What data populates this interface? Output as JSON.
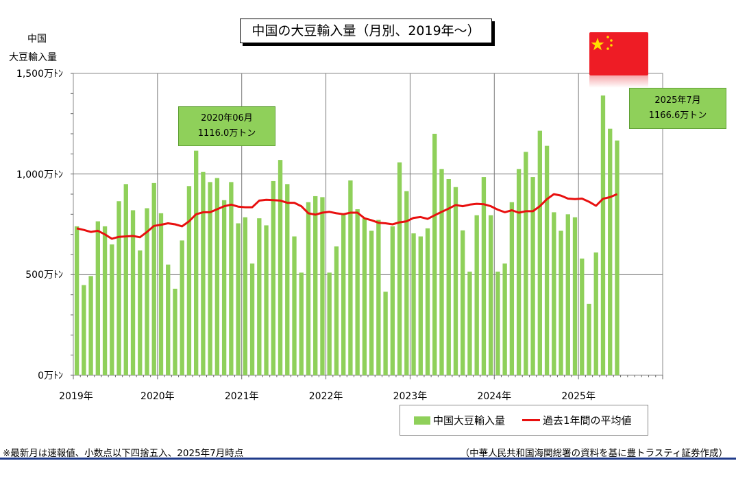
{
  "chart_data": {
    "type": "bar",
    "title": "中国の大豆輸入量（月別、2019年〜）",
    "ylabel_lines": [
      "中国",
      "大豆輸入量"
    ],
    "y_ticks": [
      {
        "value": 1500,
        "label": "1,500万ﾄﾝ"
      },
      {
        "value": 1000,
        "label": "1,000万ﾄﾝ"
      },
      {
        "value": 500,
        "label": "500万ﾄﾝ"
      },
      {
        "value": 0,
        "label": "0万ﾄﾝ"
      }
    ],
    "ylim": [
      0,
      1500
    ],
    "x_ticks": [
      "2019年",
      "2020年",
      "2021年",
      "2022年",
      "2023年",
      "2024年",
      "2025年"
    ],
    "months_span": 84,
    "grid": true,
    "series": [
      {
        "name": "中国大豆輸入量",
        "kind": "bar",
        "color": "#8fd05a",
        "values": [
          740,
          448,
          493,
          765,
          740,
          650,
          865,
          950,
          820,
          620,
          830,
          955,
          805,
          550,
          430,
          670,
          940,
          1116,
          1010,
          960,
          980,
          870,
          960,
          755,
          785,
          555,
          780,
          745,
          965,
          1070,
          950,
          690,
          510,
          860,
          890,
          885,
          510,
          640,
          805,
          968,
          825,
          780,
          718,
          772,
          415,
          740,
          1058,
          915,
          705,
          690,
          730,
          1200,
          1025,
          975,
          935,
          720,
          515,
          795,
          985,
          795,
          515,
          555,
          860,
          1025,
          1110,
          985,
          1215,
          1140,
          810,
          718,
          800,
          785,
          580,
          355,
          610,
          1390,
          1225,
          1166.6
        ]
      },
      {
        "name": "過去1年間の平均値",
        "kind": "line",
        "color": "#e8100f",
        "values": [
          730,
          722,
          712,
          718,
          700,
          678,
          688,
          690,
          692,
          686,
          712,
          742,
          748,
          755,
          750,
          740,
          765,
          800,
          810,
          810,
          825,
          840,
          848,
          838,
          835,
          835,
          868,
          872,
          870,
          868,
          857,
          857,
          840,
          805,
          798,
          808,
          812,
          805,
          800,
          808,
          808,
          780,
          770,
          758,
          755,
          750,
          760,
          765,
          782,
          786,
          777,
          795,
          812,
          828,
          846,
          840,
          848,
          852,
          850,
          840,
          823,
          810,
          820,
          808,
          815,
          815,
          840,
          875,
          900,
          893,
          878,
          875,
          878,
          862,
          842,
          877,
          885,
          900
        ]
      }
    ],
    "annotations": [
      {
        "line1": "2020年06月",
        "line2": "1116.0万トン"
      },
      {
        "line1": "2025年7月",
        "line2": "1166.6万トン"
      }
    ],
    "legend_position": "bottom-right"
  },
  "flag": {
    "icon": "china-flag-icon",
    "color": "#ee1c25"
  },
  "footnote_left": "※最新月は速報値、小数点以下四捨五入、2025年7月時点",
  "footnote_right": "（中華人民共和国海関総署の資料を基に豊トラスティ証券作成）"
}
